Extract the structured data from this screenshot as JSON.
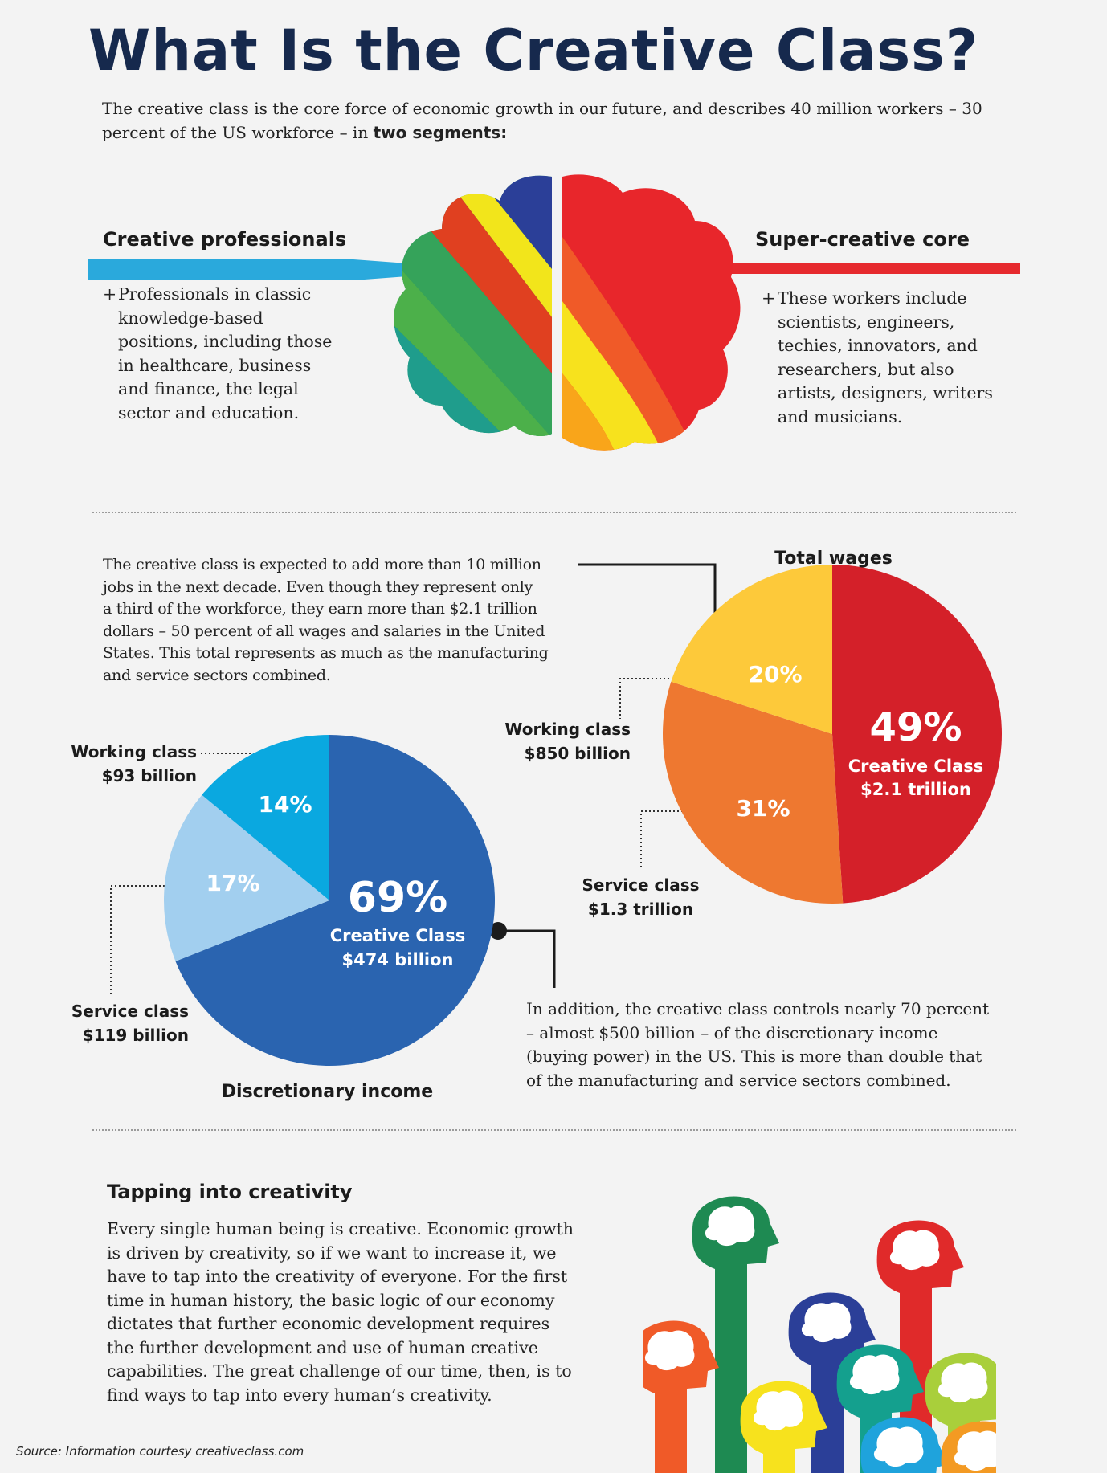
{
  "header": {
    "title": "What Is the Creative Class?",
    "intro_text": "The creative class is the core force of economic growth in our future, and describes 40 million workers – 30 percent of the US workforce – in",
    "intro_bold": "two segments:"
  },
  "segments": {
    "left": {
      "heading": "Creative professionals",
      "bullet": "+",
      "lines": [
        "Professionals in classic",
        "knowledge-based",
        "positions, including those",
        "in healthcare, business",
        "and finance, the legal",
        "sector and education."
      ]
    },
    "right": {
      "heading": "Super-creative core",
      "bullet": "+",
      "lines": [
        "These workers include",
        "scientists, engineers,",
        "techies, innovators, and",
        "researchers, but also",
        "artists, designers, writers",
        "and musicians."
      ]
    }
  },
  "wages_paragraph": [
    "The creative class is expected to add more than 10 million",
    "jobs in the next decade. Even though they represent only",
    "a third of the workforce, they earn more than $2.1 trillion",
    "dollars – 50 percent of all wages and salaries in the United",
    "States. This total represents as much as the manufacturing",
    "and service sectors combined."
  ],
  "income_paragraph": [
    "In addition, the creative class controls nearly 70 percent",
    "– almost $500 billion – of the discretionary income",
    "(buying power) in the US. This is more than double that",
    "of the manufacturing and service sectors combined."
  ],
  "tapping": {
    "heading": "Tapping into creativity",
    "lines": [
      "Every single human being is creative. Economic growth",
      "is driven by creativity, so if we want to increase it, we",
      "have to tap into the creativity of everyone. For the first",
      "time in human history, the basic logic of our economy",
      "dictates that further economic development requires",
      "the further development and use of human creative",
      "capabilities. The great challenge of our time, then, is to",
      "find ways to tap into every human’s creativity."
    ]
  },
  "source": "Source: Information courtesy creativeclass.com",
  "colors": {
    "title": "#16294d",
    "red": "#d42029",
    "orange": "#ee7830",
    "yellow": "#fdc93a",
    "navy": "#2a64b0",
    "sky": "#0aa8e0",
    "pale_blue": "#a2cfef"
  },
  "chart_data": [
    {
      "type": "pie",
      "title": "Total wages",
      "slices": [
        {
          "label": "Creative Class",
          "value": 49,
          "pct_label": "49%",
          "amount": "$2.1 trillion",
          "color": "#d42029"
        },
        {
          "label": "Service class",
          "value": 31,
          "pct_label": "31%",
          "amount": "$1.3 trillion",
          "color": "#ee7830"
        },
        {
          "label": "Working class",
          "value": 20,
          "pct_label": "20%",
          "amount": "$850 billion",
          "color": "#fdc93a"
        }
      ]
    },
    {
      "type": "pie",
      "title": "Discretionary income",
      "slices": [
        {
          "label": "Creative Class",
          "value": 69,
          "pct_label": "69%",
          "amount": "$474 billion",
          "color": "#2a64b0"
        },
        {
          "label": "Service class",
          "value": 17,
          "pct_label": "17%",
          "amount": "$119 billion",
          "color": "#a2cfef"
        },
        {
          "label": "Working class",
          "value": 14,
          "pct_label": "14%",
          "amount": "$93 billion",
          "color": "#0aa8e0"
        }
      ]
    }
  ]
}
